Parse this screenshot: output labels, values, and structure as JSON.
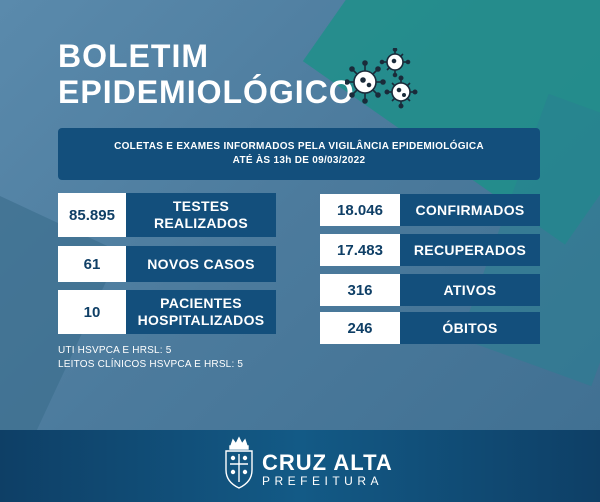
{
  "title": {
    "line1": "BOLETIM",
    "line2": "EPIDEMIOLÓGICO"
  },
  "info": {
    "line1": "COLETAS E EXAMES INFORMADOS PELA VIGILÂNCIA EPIDEMIOLÓGICA",
    "line2": "ATÉ ÀS 13h DE 09/03/2022"
  },
  "left_stats": [
    {
      "value": "85.895",
      "label_line1": "TESTES",
      "label_line2": "REALIZADOS"
    },
    {
      "value": "61",
      "label_line1": "NOVOS CASOS",
      "label_line2": ""
    },
    {
      "value": "10",
      "label_line1": "PACIENTES",
      "label_line2": "HOSPITALIZADOS"
    }
  ],
  "right_stats": [
    {
      "value": "18.046",
      "label": "CONFIRMADOS"
    },
    {
      "value": "17.483",
      "label": "RECUPERADOS"
    },
    {
      "value": "316",
      "label": "ATIVOS"
    },
    {
      "value": "246",
      "label": "ÓBITOS"
    }
  ],
  "notes": {
    "uti": "UTI HSVPCA E HRSL: 5",
    "leitos": "LEITOS CLÍNICOS HSVPCA E HRSL: 5"
  },
  "footer": {
    "brand_name": "CRUZ ALTA",
    "brand_sub": "PREFEITURA"
  },
  "colors": {
    "primary": "#134f7c",
    "accent_teal": "#1f8f8a",
    "background": "#4f7d9e"
  },
  "icons": {
    "virus": "virus-icon",
    "logo": "coat-of-arms-icon"
  }
}
